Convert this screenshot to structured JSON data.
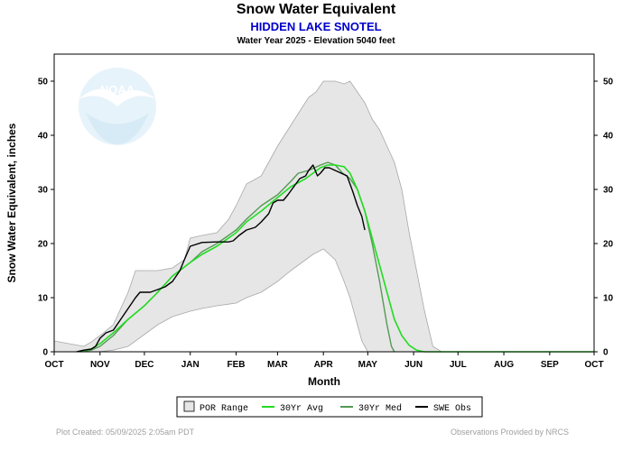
{
  "header": {
    "title": "Snow Water Equivalent",
    "station": "HIDDEN LAKE SNOTEL",
    "subtitle": "Water Year 2025 -  Elevation 5040 feet"
  },
  "footer": {
    "created": "Plot Created: 05/09/2025 2:05am PDT",
    "credit": "Observations Provided by NRCS"
  },
  "logo": {
    "text": "NOAA"
  },
  "colors": {
    "por_range": "#e6e6e6",
    "por_edge": "#a8a8a8",
    "avg": "#22dd22",
    "med": "#559955",
    "obs": "#000000"
  },
  "chart_data": {
    "type": "line",
    "title": "Snow Water Equivalent",
    "xlabel": "Month",
    "ylabel": "Snow Water Equivalent, inches",
    "x_unit": "day of water year (Oct 1 = 0)",
    "xlim": [
      0,
      365
    ],
    "ylim": [
      0,
      55
    ],
    "yticks": [
      0,
      10,
      20,
      30,
      40,
      50
    ],
    "month_ticks": [
      {
        "label": "OCT",
        "day": 0
      },
      {
        "label": "NOV",
        "day": 31
      },
      {
        "label": "DEC",
        "day": 61
      },
      {
        "label": "JAN",
        "day": 92
      },
      {
        "label": "FEB",
        "day": 123
      },
      {
        "label": "MAR",
        "day": 151
      },
      {
        "label": "APR",
        "day": 182
      },
      {
        "label": "MAY",
        "day": 212
      },
      {
        "label": "JUN",
        "day": 243
      },
      {
        "label": "JUL",
        "day": 273
      },
      {
        "label": "AUG",
        "day": 304
      },
      {
        "label": "SEP",
        "day": 335
      },
      {
        "label": "OCT",
        "day": 365
      }
    ],
    "grid": false,
    "legend_position": "bottom",
    "series": [
      {
        "name": "POR Range",
        "type": "band",
        "upper": [
          [
            0,
            2
          ],
          [
            10,
            1.5
          ],
          [
            20,
            1
          ],
          [
            25,
            1.8
          ],
          [
            31,
            3
          ],
          [
            40,
            5
          ],
          [
            45,
            8
          ],
          [
            50,
            11
          ],
          [
            55,
            15
          ],
          [
            61,
            15
          ],
          [
            70,
            15
          ],
          [
            80,
            15.5
          ],
          [
            88,
            17
          ],
          [
            92,
            21
          ],
          [
            100,
            21.5
          ],
          [
            110,
            22
          ],
          [
            118,
            24.5
          ],
          [
            123,
            27
          ],
          [
            130,
            31
          ],
          [
            140,
            32.5
          ],
          [
            145,
            35
          ],
          [
            151,
            38
          ],
          [
            158,
            41
          ],
          [
            165,
            44
          ],
          [
            172,
            47
          ],
          [
            177,
            48
          ],
          [
            182,
            50
          ],
          [
            190,
            50
          ],
          [
            196,
            49.5
          ],
          [
            200,
            50
          ],
          [
            205,
            48
          ],
          [
            210,
            46
          ],
          [
            215,
            43
          ],
          [
            220,
            41
          ],
          [
            225,
            38
          ],
          [
            230,
            35
          ],
          [
            235,
            30
          ],
          [
            240,
            22
          ],
          [
            245,
            15
          ],
          [
            250,
            8
          ],
          [
            256,
            1
          ],
          [
            262,
            0
          ]
        ],
        "lower": [
          [
            0,
            0
          ],
          [
            30,
            0
          ],
          [
            40,
            0.3
          ],
          [
            50,
            1
          ],
          [
            60,
            3
          ],
          [
            70,
            5
          ],
          [
            80,
            6.5
          ],
          [
            92,
            7.5
          ],
          [
            100,
            8
          ],
          [
            110,
            8.5
          ],
          [
            123,
            9
          ],
          [
            130,
            10
          ],
          [
            140,
            11
          ],
          [
            151,
            13
          ],
          [
            160,
            15
          ],
          [
            170,
            17
          ],
          [
            175,
            18
          ],
          [
            182,
            19
          ],
          [
            190,
            17
          ],
          [
            196,
            13
          ],
          [
            200,
            10
          ],
          [
            205,
            5
          ],
          [
            208,
            2
          ],
          [
            212,
            0
          ]
        ]
      },
      {
        "name": "30Yr Avg",
        "points": [
          [
            16,
            0
          ],
          [
            25,
            0.5
          ],
          [
            31,
            1.5
          ],
          [
            40,
            3.5
          ],
          [
            50,
            6
          ],
          [
            61,
            8.5
          ],
          [
            70,
            11
          ],
          [
            80,
            14
          ],
          [
            92,
            16.5
          ],
          [
            100,
            18
          ],
          [
            110,
            19.5
          ],
          [
            123,
            22
          ],
          [
            130,
            24
          ],
          [
            140,
            26
          ],
          [
            151,
            28.5
          ],
          [
            160,
            30.5
          ],
          [
            170,
            32
          ],
          [
            180,
            34
          ],
          [
            185,
            34.5
          ],
          [
            190,
            34.5
          ],
          [
            196,
            34.2
          ],
          [
            200,
            33
          ],
          [
            205,
            30
          ],
          [
            210,
            26
          ],
          [
            215,
            21
          ],
          [
            220,
            16
          ],
          [
            225,
            11
          ],
          [
            230,
            6
          ],
          [
            235,
            3
          ],
          [
            240,
            1.2
          ],
          [
            245,
            0.3
          ],
          [
            250,
            0
          ]
        ]
      },
      {
        "name": "30Yr Med",
        "points": [
          [
            18,
            0
          ],
          [
            25,
            0.3
          ],
          [
            31,
            1
          ],
          [
            40,
            3
          ],
          [
            50,
            6
          ],
          [
            61,
            8.5
          ],
          [
            70,
            11
          ],
          [
            80,
            14
          ],
          [
            92,
            16.5
          ],
          [
            100,
            18.5
          ],
          [
            110,
            20
          ],
          [
            123,
            22.5
          ],
          [
            130,
            24.5
          ],
          [
            140,
            27
          ],
          [
            151,
            29
          ],
          [
            160,
            31.5
          ],
          [
            165,
            33
          ],
          [
            172,
            33.5
          ],
          [
            180,
            34.5
          ],
          [
            185,
            35
          ],
          [
            190,
            34.5
          ],
          [
            195,
            33
          ],
          [
            200,
            32
          ],
          [
            205,
            30
          ],
          [
            210,
            26
          ],
          [
            215,
            20
          ],
          [
            220,
            13
          ],
          [
            225,
            5
          ],
          [
            228,
            1
          ],
          [
            230,
            0
          ]
        ]
      },
      {
        "name": "SWE Obs",
        "points": [
          [
            15,
            0
          ],
          [
            20,
            0.3
          ],
          [
            25,
            0.5
          ],
          [
            28,
            1
          ],
          [
            31,
            2.5
          ],
          [
            35,
            3.5
          ],
          [
            40,
            4
          ],
          [
            45,
            6
          ],
          [
            50,
            8
          ],
          [
            55,
            10
          ],
          [
            58,
            11
          ],
          [
            65,
            11
          ],
          [
            70,
            11.5
          ],
          [
            75,
            12
          ],
          [
            80,
            13
          ],
          [
            85,
            15
          ],
          [
            88,
            17
          ],
          [
            92,
            19.5
          ],
          [
            100,
            20.2
          ],
          [
            110,
            20.3
          ],
          [
            118,
            20.3
          ],
          [
            121,
            20.5
          ],
          [
            125,
            21.5
          ],
          [
            130,
            22.5
          ],
          [
            136,
            23
          ],
          [
            140,
            24
          ],
          [
            145,
            25.5
          ],
          [
            148,
            27.5
          ],
          [
            151,
            28
          ],
          [
            155,
            28
          ],
          [
            158,
            29
          ],
          [
            162,
            30.5
          ],
          [
            166,
            32
          ],
          [
            170,
            32.5
          ],
          [
            172,
            33.5
          ],
          [
            175,
            34.5
          ],
          [
            178,
            32.5
          ],
          [
            180,
            33
          ],
          [
            183,
            34
          ],
          [
            186,
            34
          ],
          [
            190,
            33.5
          ],
          [
            194,
            33
          ],
          [
            198,
            32.5
          ],
          [
            202,
            29.5
          ],
          [
            205,
            27
          ],
          [
            208,
            25
          ],
          [
            210,
            22.5
          ]
        ]
      }
    ]
  }
}
